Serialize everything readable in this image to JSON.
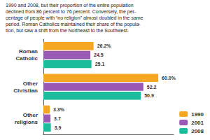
{
  "chart_data": {
    "type": "bar",
    "orientation": "horizontal",
    "annotations": [
      "1990 and 2008, but their proportion of the entire population\ndeclined from 86 percent to 76 percent. Conversely, the per-\ncentage of people with “no religion” almost doubled in the same\nperiod. Roman Catholics maintained their share of the popula-\ntion, but saw a shift from the Northeast to the Southwest."
    ],
    "categories": [
      "Roman\nCatholic",
      "Other\nChristian",
      "Other\nreligions"
    ],
    "series": [
      {
        "name": "1990",
        "color": "#F5A623",
        "values": [
          26.2,
          60.0,
          3.3
        ],
        "value_labels": [
          "26.2%",
          "60.0%",
          "3.3%"
        ]
      },
      {
        "name": "2001",
        "color": "#9B59B6",
        "values": [
          24.5,
          52.2,
          3.7
        ],
        "value_labels": [
          "24.5",
          "52.2",
          "3.7"
        ]
      },
      {
        "name": "2008",
        "color": "#1ABC9C",
        "values": [
          25.1,
          50.9,
          3.9
        ],
        "value_labels": [
          "25.1",
          "50.9",
          "3.9"
        ]
      }
    ],
    "xlim": [
      0,
      68
    ],
    "data_labels": true,
    "tick_labels": false,
    "grid": false,
    "legend": "lower right"
  }
}
